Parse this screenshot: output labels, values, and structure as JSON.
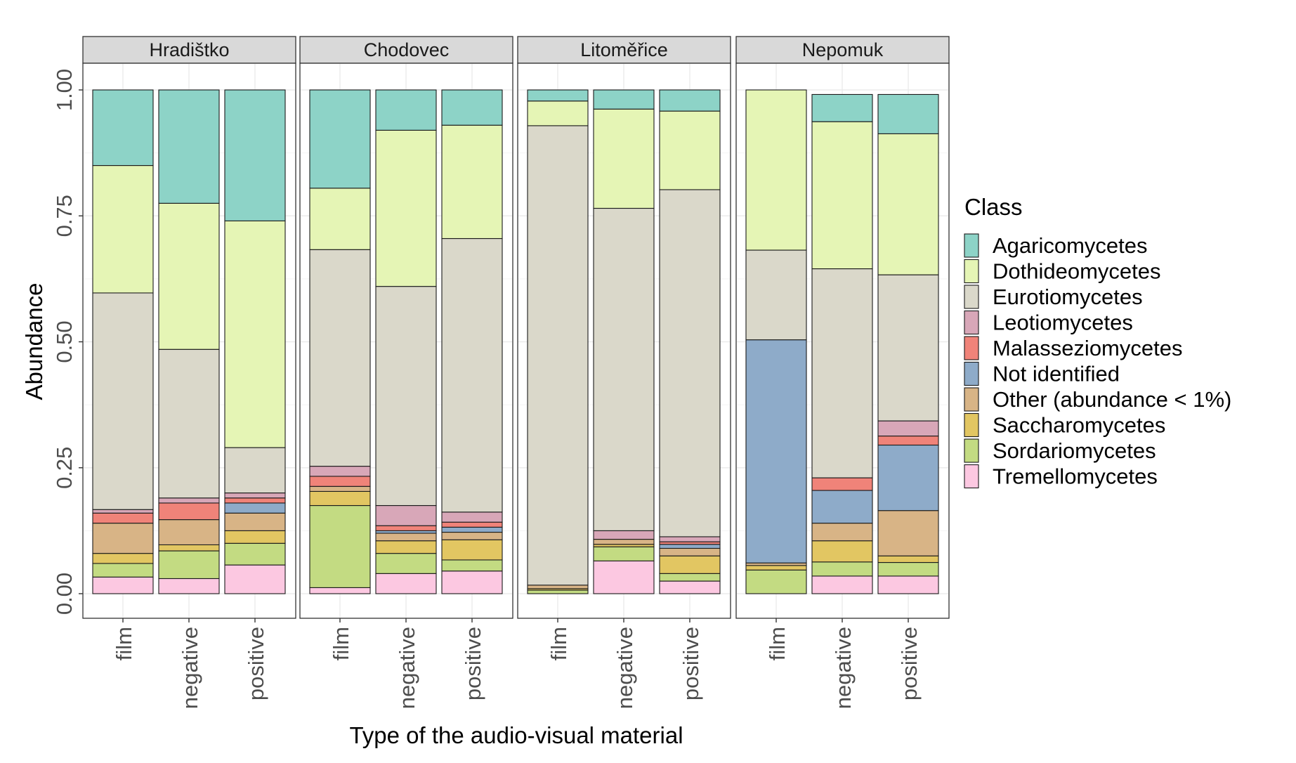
{
  "chart_data": {
    "type": "bar",
    "stacked": true,
    "facets": [
      "Hradištko",
      "Chodovec",
      "Litoměřice",
      "Nepomuk"
    ],
    "categories": [
      "film",
      "negative",
      "positive"
    ],
    "xlabel": "Type of the audio-visual material",
    "ylabel": "Abundance",
    "ylim": [
      0,
      1.05
    ],
    "yticks": [
      0,
      0.25,
      0.5,
      0.75,
      1
    ],
    "ytick_labels": [
      "0.00",
      "0.25",
      "0.50",
      "0.75",
      "1.00"
    ],
    "legend": {
      "title": "Class",
      "position": "right",
      "entries": [
        {
          "name": "Agaricomycetes",
          "color": "#8dd3c7"
        },
        {
          "name": "Dothideomycetes",
          "color": "#e5f5b5"
        },
        {
          "name": "Eurotiomycetes",
          "color": "#dad8ca"
        },
        {
          "name": "Leotiomycetes",
          "color": "#d8a7b8"
        },
        {
          "name": "Malasseziomycetes",
          "color": "#f08379"
        },
        {
          "name": "Not identified",
          "color": "#8eabc9"
        },
        {
          "name": "Other (abundance < 1%)",
          "color": "#d8b486"
        },
        {
          "name": "Saccharomycetes",
          "color": "#e2c662"
        },
        {
          "name": "Sordariomycetes",
          "color": "#c3db82"
        },
        {
          "name": "Tremellomycetes",
          "color": "#fcc8e1"
        }
      ]
    },
    "series_order_bottom_to_top": [
      "Tremellomycetes",
      "Sordariomycetes",
      "Saccharomycetes",
      "Other (abundance < 1%)",
      "Not identified",
      "Malasseziomycetes",
      "Leotiomycetes",
      "Eurotiomycetes",
      "Dothideomycetes",
      "Agaricomycetes"
    ],
    "stacks": {
      "Hradištko": {
        "film": {
          "Tremellomycetes": 0.033,
          "Sordariomycetes": 0.027,
          "Saccharomycetes": 0.02,
          "Other (abundance < 1%)": 0.06,
          "Not identified": 0.0,
          "Malasseziomycetes": 0.02,
          "Leotiomycetes": 0.007,
          "Eurotiomycetes": 0.43,
          "Dothideomycetes": 0.253,
          "Agaricomycetes": 0.15
        },
        "negative": {
          "Tremellomycetes": 0.03,
          "Sordariomycetes": 0.055,
          "Saccharomycetes": 0.012,
          "Other (abundance < 1%)": 0.05,
          "Not identified": 0.0,
          "Malasseziomycetes": 0.033,
          "Leotiomycetes": 0.01,
          "Eurotiomycetes": 0.295,
          "Dothideomycetes": 0.29,
          "Agaricomycetes": 0.225
        },
        "positive": {
          "Tremellomycetes": 0.057,
          "Sordariomycetes": 0.043,
          "Saccharomycetes": 0.025,
          "Other (abundance < 1%)": 0.035,
          "Not identified": 0.02,
          "Malasseziomycetes": 0.01,
          "Leotiomycetes": 0.01,
          "Eurotiomycetes": 0.09,
          "Dothideomycetes": 0.45,
          "Agaricomycetes": 0.26
        }
      },
      "Chodovec": {
        "film": {
          "Tremellomycetes": 0.012,
          "Sordariomycetes": 0.163,
          "Saccharomycetes": 0.028,
          "Other (abundance < 1%)": 0.01,
          "Not identified": 0.0,
          "Malasseziomycetes": 0.02,
          "Leotiomycetes": 0.02,
          "Eurotiomycetes": 0.43,
          "Dothideomycetes": 0.122,
          "Agaricomycetes": 0.195
        },
        "negative": {
          "Tremellomycetes": 0.04,
          "Sordariomycetes": 0.04,
          "Saccharomycetes": 0.025,
          "Other (abundance < 1%)": 0.015,
          "Not identified": 0.005,
          "Malasseziomycetes": 0.01,
          "Leotiomycetes": 0.04,
          "Eurotiomycetes": 0.435,
          "Dothideomycetes": 0.31,
          "Agaricomycetes": 0.08
        },
        "positive": {
          "Tremellomycetes": 0.045,
          "Sordariomycetes": 0.022,
          "Saccharomycetes": 0.04,
          "Other (abundance < 1%)": 0.015,
          "Not identified": 0.01,
          "Malasseziomycetes": 0.01,
          "Leotiomycetes": 0.02,
          "Eurotiomycetes": 0.543,
          "Dothideomycetes": 0.225,
          "Agaricomycetes": 0.07
        }
      },
      "Litoměřice": {
        "film": {
          "Tremellomycetes": 0.0,
          "Sordariomycetes": 0.007,
          "Saccharomycetes": 0.003,
          "Other (abundance < 1%)": 0.007,
          "Not identified": 0.0,
          "Malasseziomycetes": 0.0,
          "Leotiomycetes": 0.0,
          "Eurotiomycetes": 0.912,
          "Dothideomycetes": 0.049,
          "Agaricomycetes": 0.022
        },
        "negative": {
          "Tremellomycetes": 0.065,
          "Sordariomycetes": 0.028,
          "Saccharomycetes": 0.005,
          "Other (abundance < 1%)": 0.01,
          "Not identified": 0.0,
          "Malasseziomycetes": 0.0,
          "Leotiomycetes": 0.017,
          "Eurotiomycetes": 0.64,
          "Dothideomycetes": 0.197,
          "Agaricomycetes": 0.038
        },
        "positive": {
          "Tremellomycetes": 0.025,
          "Sordariomycetes": 0.015,
          "Saccharomycetes": 0.035,
          "Other (abundance < 1%)": 0.015,
          "Not identified": 0.008,
          "Malasseziomycetes": 0.005,
          "Leotiomycetes": 0.01,
          "Eurotiomycetes": 0.689,
          "Dothideomycetes": 0.156,
          "Agaricomycetes": 0.042
        }
      },
      "Nepomuk": {
        "film": {
          "Tremellomycetes": 0.0,
          "Sordariomycetes": 0.047,
          "Saccharomycetes": 0.009,
          "Other (abundance < 1%)": 0.005,
          "Not identified": 0.443,
          "Malasseziomycetes": 0.0,
          "Leotiomycetes": 0.0,
          "Eurotiomycetes": 0.178,
          "Dothideomycetes": 0.318,
          "Agaricomycetes": 0.0
        },
        "negative": {
          "Tremellomycetes": 0.035,
          "Sordariomycetes": 0.028,
          "Saccharomycetes": 0.042,
          "Other (abundance < 1%)": 0.035,
          "Not identified": 0.065,
          "Malasseziomycetes": 0.025,
          "Leotiomycetes": 0.0,
          "Eurotiomycetes": 0.415,
          "Dothideomycetes": 0.292,
          "Agaricomycetes": 0.054
        },
        "positive": {
          "Tremellomycetes": 0.035,
          "Sordariomycetes": 0.027,
          "Saccharomycetes": 0.013,
          "Other (abundance < 1%)": 0.09,
          "Not identified": 0.13,
          "Malasseziomycetes": 0.018,
          "Leotiomycetes": 0.03,
          "Eurotiomycetes": 0.29,
          "Dothideomycetes": 0.28,
          "Agaricomycetes": 0.078
        }
      }
    }
  }
}
